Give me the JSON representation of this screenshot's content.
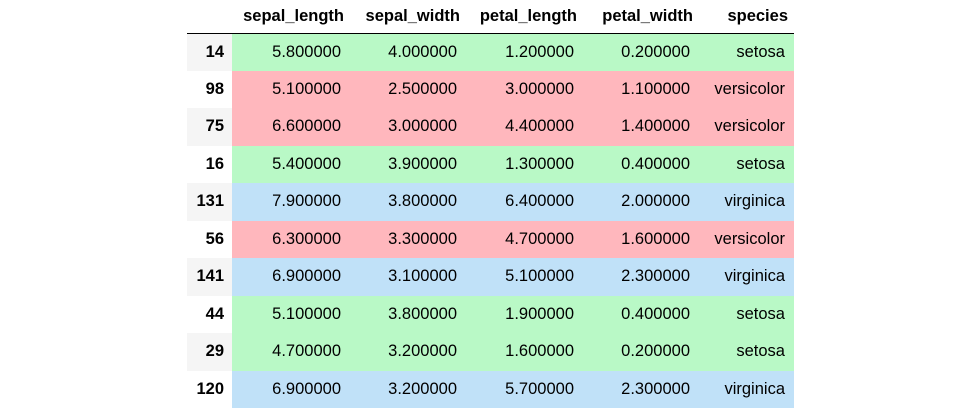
{
  "table": {
    "columns": [
      "sepal_length",
      "sepal_width",
      "petal_length",
      "petal_width",
      "species"
    ],
    "species_colors": {
      "setosa": "#b9f9c6",
      "versicolor": "#ffb7bd",
      "virginica": "#c0e1f8"
    },
    "rows": [
      {
        "index": "14",
        "sepal_length": "5.800000",
        "sepal_width": "4.000000",
        "petal_length": "1.200000",
        "petal_width": "0.200000",
        "species": "setosa"
      },
      {
        "index": "98",
        "sepal_length": "5.100000",
        "sepal_width": "2.500000",
        "petal_length": "3.000000",
        "petal_width": "1.100000",
        "species": "versicolor"
      },
      {
        "index": "75",
        "sepal_length": "6.600000",
        "sepal_width": "3.000000",
        "petal_length": "4.400000",
        "petal_width": "1.400000",
        "species": "versicolor"
      },
      {
        "index": "16",
        "sepal_length": "5.400000",
        "sepal_width": "3.900000",
        "petal_length": "1.300000",
        "petal_width": "0.400000",
        "species": "setosa"
      },
      {
        "index": "131",
        "sepal_length": "7.900000",
        "sepal_width": "3.800000",
        "petal_length": "6.400000",
        "petal_width": "2.000000",
        "species": "virginica"
      },
      {
        "index": "56",
        "sepal_length": "6.300000",
        "sepal_width": "3.300000",
        "petal_length": "4.700000",
        "petal_width": "1.600000",
        "species": "versicolor"
      },
      {
        "index": "141",
        "sepal_length": "6.900000",
        "sepal_width": "3.100000",
        "petal_length": "5.100000",
        "petal_width": "2.300000",
        "species": "virginica"
      },
      {
        "index": "44",
        "sepal_length": "5.100000",
        "sepal_width": "3.800000",
        "petal_length": "1.900000",
        "petal_width": "0.400000",
        "species": "setosa"
      },
      {
        "index": "29",
        "sepal_length": "4.700000",
        "sepal_width": "3.200000",
        "petal_length": "1.600000",
        "petal_width": "0.200000",
        "species": "setosa"
      },
      {
        "index": "120",
        "sepal_length": "6.900000",
        "sepal_width": "3.200000",
        "petal_length": "5.700000",
        "petal_width": "2.300000",
        "species": "virginica"
      }
    ]
  }
}
